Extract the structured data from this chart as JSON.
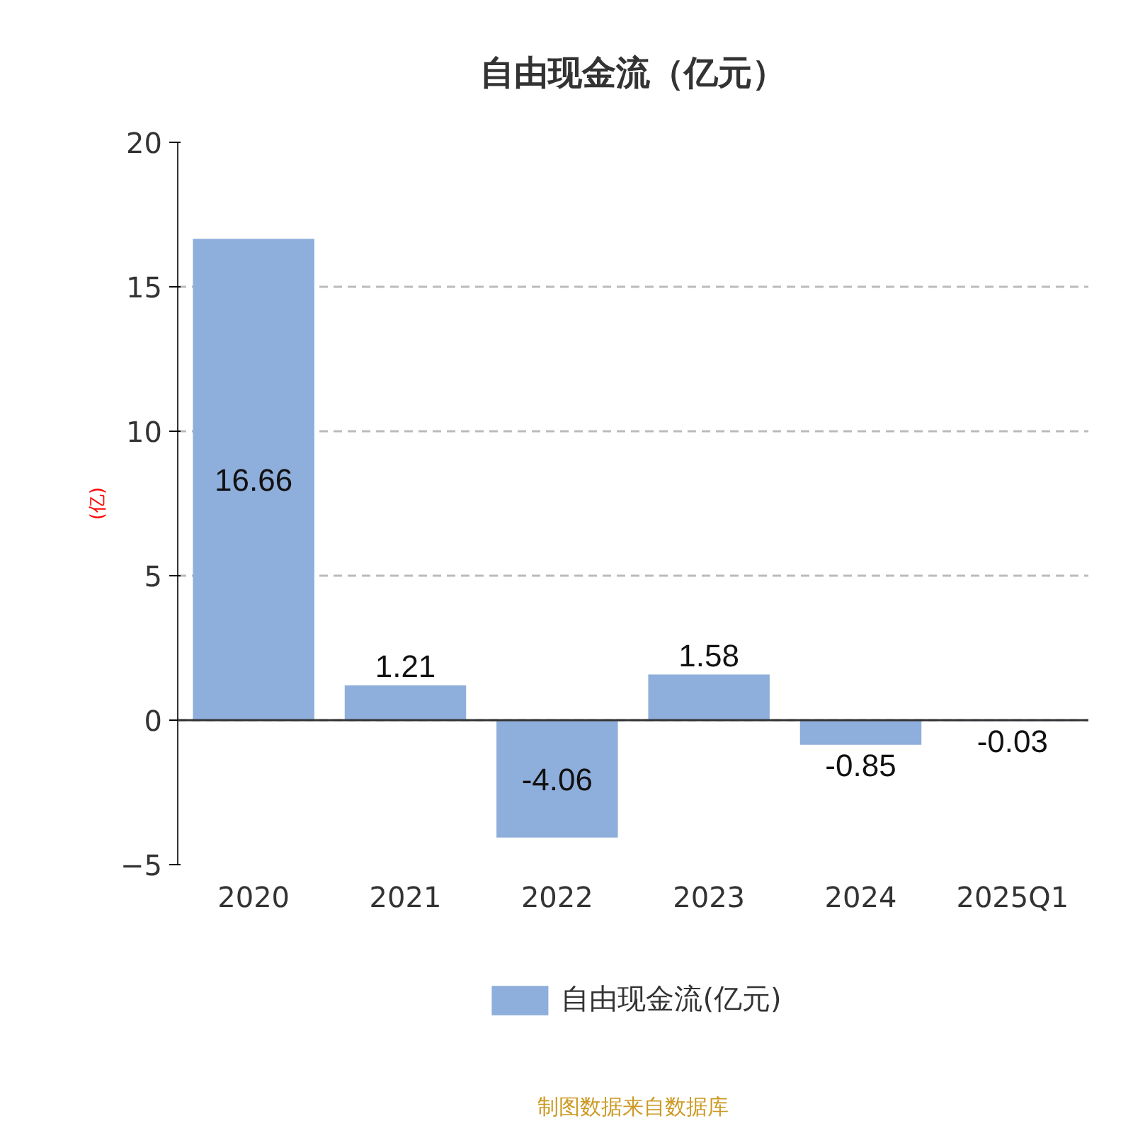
{
  "chart_data": {
    "type": "bar",
    "title": "自由现金流（亿元）",
    "ylabel": "(亿)",
    "categories": [
      "2020",
      "2021",
      "2022",
      "2023",
      "2024",
      "2025Q1"
    ],
    "series": [
      {
        "name": "自由现金流(亿元)",
        "color": "#8eaedb",
        "values": [
          16.66,
          1.21,
          -4.06,
          1.58,
          -0.85,
          -0.03
        ]
      }
    ],
    "ylim": [
      -5,
      20
    ],
    "yticks": [
      -5,
      0,
      5,
      10,
      15,
      20
    ],
    "grid": "y",
    "legend": "bottom",
    "data_labels": true,
    "annotations": [
      "制图数据来自数据库"
    ]
  }
}
